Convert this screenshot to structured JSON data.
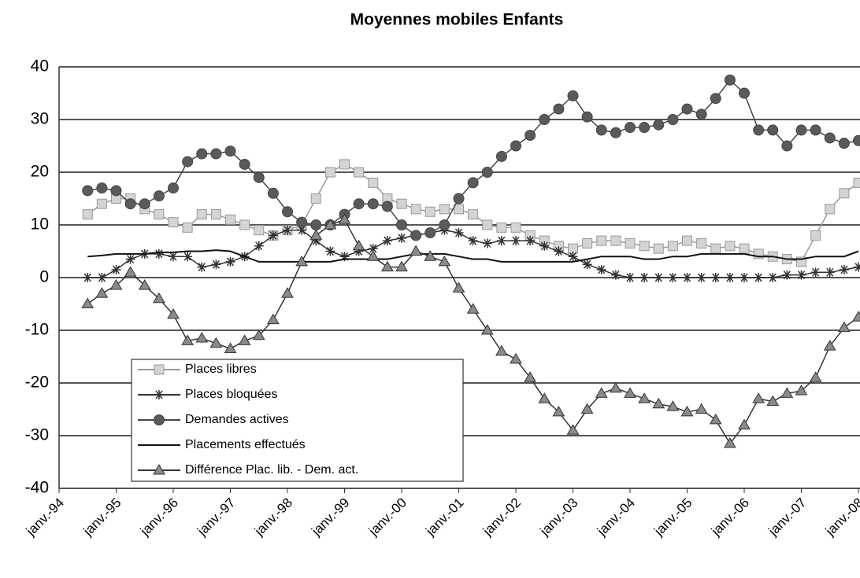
{
  "chart_data": {
    "type": "line",
    "title": "Moyennes mobiles Enfants",
    "categories": [
      "janv.-94",
      null,
      null,
      null,
      "janv.-95",
      null,
      null,
      null,
      "janv.-96",
      null,
      null,
      null,
      "janv.-97",
      null,
      null,
      null,
      "janv.-98",
      null,
      null,
      null,
      "janv.-99",
      null,
      null,
      null,
      "janv.-00",
      null,
      null,
      null,
      "janv.-01",
      null,
      null,
      null,
      "janv.-02",
      null,
      null,
      null,
      "janv.-03",
      null,
      null,
      null,
      "janv.-04",
      null,
      null,
      null,
      "janv.-05",
      null,
      null,
      null,
      "janv.-06",
      null,
      null,
      null,
      "janv.-07",
      null,
      null,
      null,
      "janv.-08"
    ],
    "series": [
      {
        "name": "Places libres",
        "color": "#999999",
        "fill": "#d4d4d4",
        "marker": "square",
        "values": [
          null,
          null,
          12,
          14,
          15,
          15,
          13,
          12,
          10.5,
          9.5,
          12,
          12,
          11,
          10,
          9,
          8,
          9,
          10,
          15,
          20,
          21.5,
          20,
          18,
          15,
          14,
          13,
          12.5,
          13,
          13,
          12,
          10,
          9.5,
          9.5,
          8,
          7,
          6,
          5.5,
          6.5,
          7,
          7,
          6.5,
          6,
          5.5,
          6,
          7,
          6.5,
          5.5,
          6,
          5.5,
          4.5,
          4,
          3.5,
          3,
          8,
          13,
          16,
          18
        ]
      },
      {
        "name": "Places bloquées",
        "color": "#333333",
        "fill": "#333333",
        "marker": "asterisk",
        "values": [
          null,
          null,
          0,
          0,
          1.5,
          3.5,
          4.5,
          4.5,
          4,
          4,
          2,
          2.5,
          3,
          4,
          6,
          8,
          9,
          9,
          7,
          5,
          4,
          5,
          5.5,
          7,
          7.5,
          8,
          8.5,
          9,
          8.5,
          7,
          6.5,
          7,
          7,
          7,
          6,
          5,
          4,
          2.5,
          1.5,
          0.5,
          0,
          0,
          0,
          0,
          0,
          0,
          0,
          0,
          0,
          0,
          0,
          0.5,
          0.5,
          1,
          1,
          1.5,
          2
        ]
      },
      {
        "name": "Demandes actives",
        "color": "#444444",
        "fill": "#5a5a5a",
        "marker": "circle",
        "values": [
          null,
          null,
          16.5,
          17,
          16.5,
          14,
          14,
          15.5,
          17,
          22,
          23.5,
          23.5,
          24,
          21.5,
          19,
          16,
          12.5,
          10.5,
          10,
          10,
          12,
          14,
          14,
          13.5,
          10,
          8,
          8.5,
          10,
          15,
          18,
          20,
          23,
          25,
          27,
          30,
          32,
          34.5,
          30.5,
          28,
          27.5,
          28.5,
          28.5,
          29,
          30,
          32,
          31,
          34,
          37.5,
          35,
          28,
          28,
          25,
          28,
          28,
          26.5,
          25.5,
          26
        ]
      },
      {
        "name": "Placements effectués",
        "color": "#111111",
        "fill": "#111111",
        "marker": "none",
        "values": [
          null,
          null,
          4,
          4.2,
          4.5,
          4.5,
          4.5,
          4.8,
          4.8,
          5,
          5,
          5.2,
          5,
          4,
          3,
          3,
          3,
          3,
          3,
          3,
          3.5,
          3.5,
          3.5,
          3.5,
          4,
          4.5,
          4.5,
          4.5,
          4,
          3.5,
          3.5,
          3,
          3,
          3,
          3,
          3,
          3,
          3.5,
          4,
          4,
          4,
          3.5,
          3.5,
          4,
          4,
          4.5,
          4.5,
          4.5,
          4.5,
          4,
          4,
          3.5,
          3.5,
          4,
          4,
          4,
          5
        ]
      },
      {
        "name": "Différence Plac. lib. - Dem. act.",
        "color": "#333333",
        "fill": "#8a8a8a",
        "marker": "triangle",
        "values": [
          null,
          null,
          -5,
          -3,
          -1.5,
          1,
          -1.5,
          -4,
          -7,
          -12,
          -11.5,
          -12.5,
          -13.5,
          -12,
          -11,
          -8,
          -3,
          3,
          8,
          10,
          11,
          6,
          4,
          2,
          2,
          5,
          4,
          3,
          -2,
          -6,
          -10,
          -14,
          -15.5,
          -19,
          -23,
          -25.5,
          -29,
          -25,
          -22,
          -21,
          -22,
          -23,
          -24,
          -24.5,
          -25.5,
          -25,
          -27,
          -31.5,
          -28,
          -23,
          -23.5,
          -22,
          -21.5,
          -19,
          -13,
          -9.5,
          -7.5
        ]
      }
    ],
    "ylim": [
      -40,
      40
    ],
    "yticks": [
      -40,
      -30,
      -20,
      -10,
      0,
      10,
      20,
      30,
      40
    ],
    "grid": true
  }
}
